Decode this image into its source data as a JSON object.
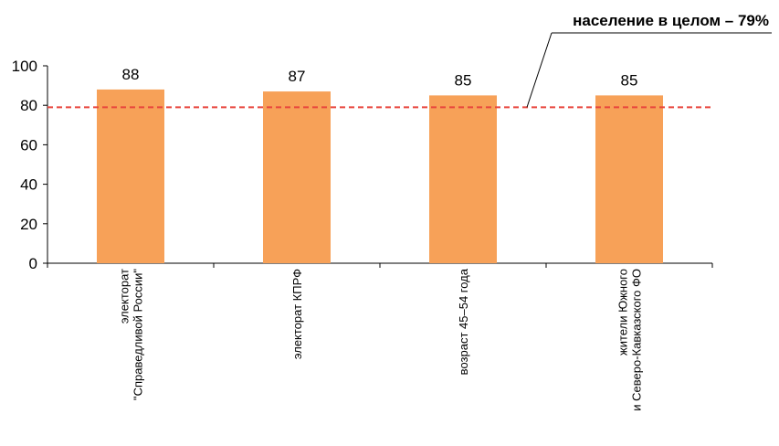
{
  "chart_data": {
    "type": "bar",
    "categories": [
      [
        "электорат",
        "\"Справедливой России\""
      ],
      [
        "электорат КПРФ"
      ],
      [
        "возраст 45–54 года"
      ],
      [
        "жители Южного",
        "и Северо-Кавказского ФО"
      ]
    ],
    "values": [
      88,
      87,
      85,
      85
    ],
    "ylim": [
      0,
      100
    ],
    "yticks": [
      0,
      20,
      40,
      60,
      80,
      100
    ],
    "reference_line": {
      "value": 79,
      "label": "население в целом – 79%"
    },
    "grid": false,
    "legend": "none"
  },
  "colors": {
    "bar": "#F7A158",
    "reference_line": "#E8453C",
    "axis": "#000000"
  }
}
